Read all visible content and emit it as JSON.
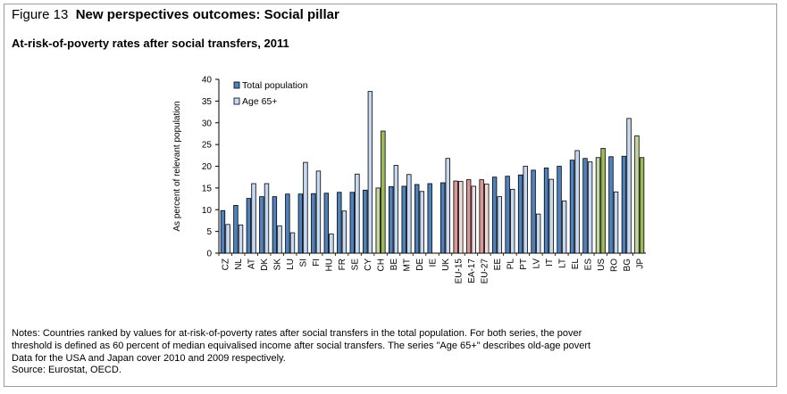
{
  "figure": {
    "label": "Figure 13",
    "title": "New perspectives outcomes: Social pillar",
    "subtitle": "At-risk-of-poverty rates after social transfers, 2011"
  },
  "notes": {
    "line1": "Notes: Countries ranked by values for at-risk-of-poverty rates after social transfers in the total population. For both series, the pover",
    "line2": "threshold is defined as 60 percent of median equivalised income after social transfers. The series \"Age 65+\" describes old-age povert",
    "line3": "Data for the USA and Japan cover 2010 and 2009 respectively."
  },
  "source": "Source: Eurostat, OECD.",
  "colors": {
    "total": "#4f81bd",
    "age65": "#c6d9f1",
    "eu_total": "#d99694",
    "eu_age": "#f2dcdb",
    "highlight_total": "#c3d69b",
    "highlight_age": "#9bbb59",
    "outline": "#000000"
  },
  "chart_data": {
    "type": "bar",
    "title": "At-risk-of-poverty rates after social transfers, 2011",
    "ylabel": "As percent of relevant population",
    "xlabel": "",
    "ylim": [
      0,
      40
    ],
    "yticks": [
      0,
      5,
      10,
      15,
      20,
      25,
      30,
      35,
      40
    ],
    "legend_position": "top-left",
    "categories": [
      "CZ",
      "NL",
      "AT",
      "DK",
      "SK",
      "LU",
      "SI",
      "FI",
      "HU",
      "FR",
      "SE",
      "CY",
      "CH",
      "BE",
      "MT",
      "DE",
      "IE",
      "UK",
      "EU-15",
      "EA-17",
      "EU-27",
      "EE",
      "PL",
      "PT",
      "LV",
      "IT",
      "LT",
      "EL",
      "ES",
      "US",
      "RO",
      "BG",
      "JP"
    ],
    "highlight_groups": {
      "eu": [
        "EU-15",
        "EA-17",
        "EU-27"
      ],
      "green": [
        "CH",
        "US",
        "JP"
      ]
    },
    "series": [
      {
        "name": "Total population",
        "values": [
          9.8,
          11.0,
          12.6,
          13.0,
          13.0,
          13.6,
          13.6,
          13.7,
          13.8,
          14.0,
          14.0,
          14.5,
          15.0,
          15.3,
          15.4,
          15.8,
          16.0,
          16.2,
          16.6,
          16.9,
          16.9,
          17.5,
          17.7,
          18.0,
          19.1,
          19.6,
          20.0,
          21.4,
          21.8,
          22.0,
          22.2,
          22.3,
          27.0
        ]
      },
      {
        "name": "Age 65+",
        "values": [
          6.6,
          6.5,
          16.0,
          16.0,
          6.3,
          4.7,
          20.9,
          18.9,
          4.4,
          9.7,
          18.2,
          37.2,
          28.1,
          20.2,
          18.1,
          14.2,
          null,
          21.8,
          16.5,
          15.4,
          15.9,
          13.0,
          14.7,
          20.0,
          9.0,
          17.0,
          12.0,
          23.6,
          21.0,
          24.1,
          14.1,
          31.0,
          22.0
        ]
      }
    ]
  }
}
